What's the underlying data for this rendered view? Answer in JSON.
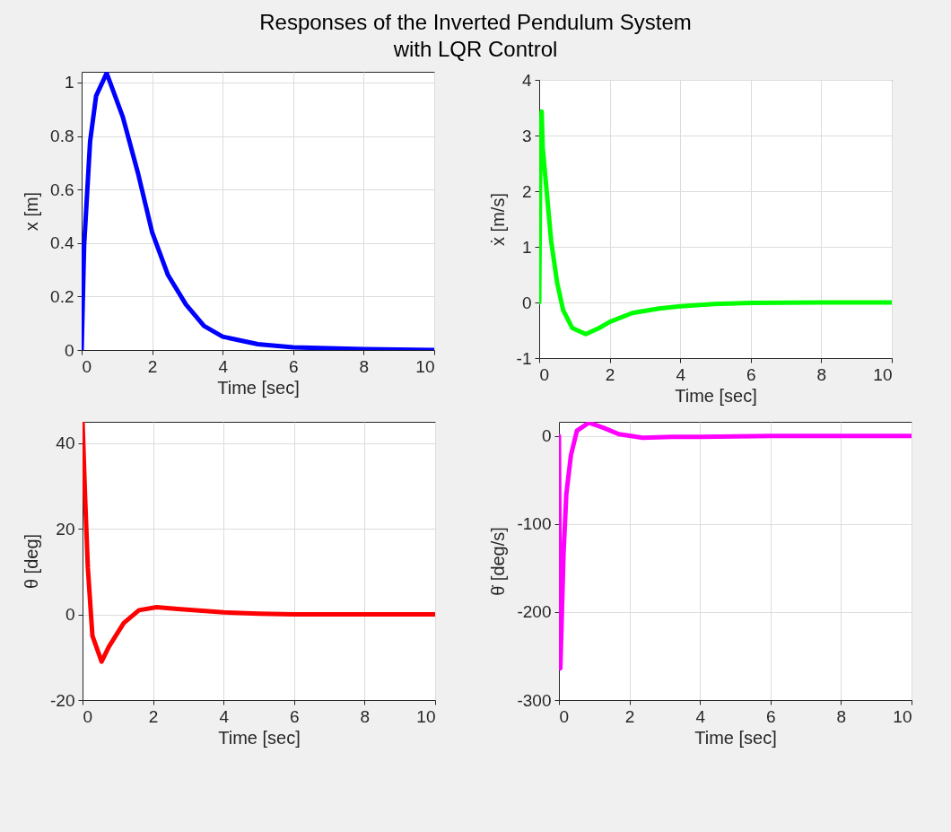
{
  "chart_data": [
    {
      "type": "line",
      "title": "Responses of the Inverted Pendulum System\nwith LQR Control",
      "xlabel": "Time [sec]",
      "ylabel": "x [m]",
      "grid": true,
      "xlim": [
        0,
        10
      ],
      "ylim": [
        0,
        1.04
      ],
      "xticks": [
        0,
        2,
        4,
        6,
        8,
        10
      ],
      "yticks": [
        0,
        0.2,
        0.4,
        0.6,
        0.8,
        1
      ],
      "x": [
        0,
        0.07,
        0.24,
        0.41,
        0.71,
        1.17,
        1.6,
        2,
        2.45,
        2.96,
        3.47,
        4,
        5,
        6,
        8,
        10
      ],
      "series": [
        {
          "color": "#0000ff",
          "values": [
            0,
            0.39,
            0.78,
            0.95,
            1.035,
            0.87,
            0.66,
            0.44,
            0.28,
            0.17,
            0.09,
            0.05,
            0.022,
            0.01,
            0.003,
            0
          ]
        }
      ]
    },
    {
      "type": "line",
      "xlabel": "Time [sec]",
      "ylabel": "ẋ [m/s]",
      "grid": true,
      "xlim": [
        0,
        10
      ],
      "ylim": [
        -1,
        4
      ],
      "xticks": [
        0,
        2,
        4,
        6,
        8,
        10
      ],
      "yticks": [
        -1,
        0,
        1,
        2,
        3,
        4
      ],
      "x": [
        0,
        0.03,
        0.07,
        0.1,
        0.2,
        0.34,
        0.51,
        0.68,
        0.94,
        1.32,
        1.7,
        2,
        2.64,
        3.4,
        4,
        4.94,
        6,
        8,
        10
      ],
      "series": [
        {
          "color": "#00ff00",
          "values": [
            0,
            2.6,
            3.43,
            2.78,
            2.08,
            1.1,
            0.35,
            -0.14,
            -0.46,
            -0.57,
            -0.46,
            -0.35,
            -0.19,
            -0.11,
            -0.07,
            -0.03,
            -0.01,
            0,
            0
          ]
        }
      ]
    },
    {
      "type": "line",
      "xlabel": "Time [sec]",
      "ylabel": "θ [deg]",
      "grid": true,
      "xlim": [
        0,
        10
      ],
      "ylim": [
        -20,
        45
      ],
      "xticks": [
        0,
        2,
        4,
        6,
        8,
        10
      ],
      "yticks": [
        -20,
        0,
        20,
        40
      ],
      "x": [
        0,
        0.07,
        0.15,
        0.28,
        0.54,
        0.75,
        1.17,
        1.6,
        2.1,
        2.7,
        4,
        5,
        6,
        10
      ],
      "series": [
        {
          "color": "#ff0000",
          "values": [
            45,
            28,
            11,
            -5,
            -11,
            -7.5,
            -2,
            1,
            1.7,
            1.3,
            0.5,
            0.2,
            0,
            0
          ]
        }
      ]
    },
    {
      "type": "line",
      "xlabel": "Time [sec]",
      "ylabel": "θ̇ [deg/s]",
      "grid": true,
      "xlim": [
        0,
        10
      ],
      "ylim": [
        -300,
        16
      ],
      "xticks": [
        0,
        2,
        4,
        6,
        8,
        10
      ],
      "yticks": [
        -300,
        -200,
        -100,
        0
      ],
      "x": [
        0,
        0.02,
        0.04,
        0.13,
        0.21,
        0.34,
        0.51,
        0.85,
        1.28,
        1.7,
        2.38,
        3.2,
        4,
        6,
        10
      ],
      "series": [
        {
          "color": "#ff00ff",
          "values": [
            0,
            -150,
            -264,
            -134,
            -66,
            -22,
            6,
            15,
            9,
            2,
            -2,
            -1,
            -1,
            0,
            0
          ]
        }
      ]
    }
  ]
}
